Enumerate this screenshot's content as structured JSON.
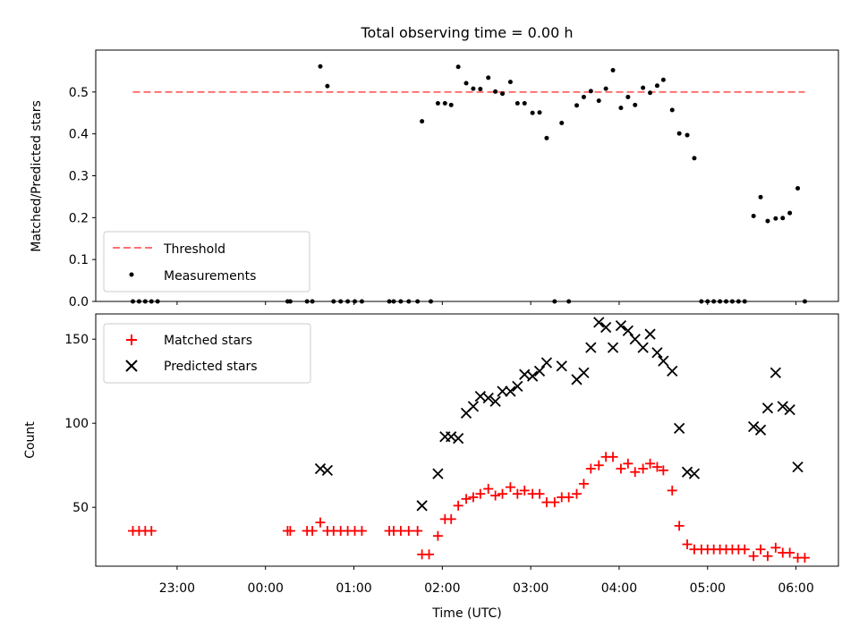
{
  "chart_data": [
    {
      "type": "scatter",
      "title": "Total observing time = 0.00 h",
      "xlabel": "",
      "ylabel": "Matched/Predicted stars",
      "x_unit": "hours relative to 00:00 UTC",
      "xlim": [
        -1.92,
        6.48
      ],
      "ylim": [
        0,
        0.6
      ],
      "yticks": [
        0.0,
        0.1,
        0.2,
        0.3,
        0.4,
        0.5
      ],
      "ytick_labels": [
        "0.0",
        "0.1",
        "0.2",
        "0.3",
        "0.4",
        "0.5"
      ],
      "legend": {
        "placement": "lower-left",
        "entries": [
          "Threshold",
          "Measurements"
        ]
      },
      "threshold": {
        "name": "Threshold",
        "y": 0.5,
        "x_start": -1.5,
        "x_end": 6.1,
        "color": "#ff7070"
      },
      "series": [
        {
          "name": "Measurements",
          "color": "#000000",
          "points": [
            [
              -1.5,
              0
            ],
            [
              -1.43,
              0
            ],
            [
              -1.36,
              0
            ],
            [
              -1.29,
              0
            ],
            [
              -1.22,
              0
            ],
            [
              0.25,
              0
            ],
            [
              0.28,
              0
            ],
            [
              0.47,
              0
            ],
            [
              0.53,
              0
            ],
            [
              0.62,
              0.561
            ],
            [
              0.7,
              0.514
            ],
            [
              0.77,
              0
            ],
            [
              0.85,
              0
            ],
            [
              0.93,
              0
            ],
            [
              1.01,
              0
            ],
            [
              1.09,
              0
            ],
            [
              1.4,
              0
            ],
            [
              1.45,
              0
            ],
            [
              1.53,
              0
            ],
            [
              1.62,
              0
            ],
            [
              1.72,
              0
            ],
            [
              1.77,
              0.43
            ],
            [
              1.87,
              0
            ],
            [
              1.95,
              0.473
            ],
            [
              2.03,
              0.473
            ],
            [
              2.1,
              0.469
            ],
            [
              2.18,
              0.56
            ],
            [
              2.27,
              0.521
            ],
            [
              2.35,
              0.508
            ],
            [
              2.43,
              0.507
            ],
            [
              2.52,
              0.534
            ],
            [
              2.6,
              0.501
            ],
            [
              2.68,
              0.496
            ],
            [
              2.77,
              0.524
            ],
            [
              2.85,
              0.473
            ],
            [
              2.93,
              0.473
            ],
            [
              3.02,
              0.45
            ],
            [
              3.1,
              0.451
            ],
            [
              3.18,
              0.39
            ],
            [
              3.27,
              0
            ],
            [
              3.35,
              0.426
            ],
            [
              3.43,
              0
            ],
            [
              3.52,
              0.468
            ],
            [
              3.6,
              0.488
            ],
            [
              3.68,
              0.502
            ],
            [
              3.77,
              0.479
            ],
            [
              3.85,
              0.508
            ],
            [
              3.93,
              0.552
            ],
            [
              4.02,
              0.462
            ],
            [
              4.1,
              0.488
            ],
            [
              4.18,
              0.469
            ],
            [
              4.27,
              0.51
            ],
            [
              4.35,
              0.498
            ],
            [
              4.43,
              0.515
            ],
            [
              4.5,
              0.529
            ],
            [
              4.6,
              0.457
            ],
            [
              4.68,
              0.401
            ],
            [
              4.77,
              0.397
            ],
            [
              4.85,
              0.342
            ],
            [
              4.93,
              0
            ],
            [
              5.0,
              0
            ],
            [
              5.07,
              0
            ],
            [
              5.14,
              0
            ],
            [
              5.21,
              0
            ],
            [
              5.28,
              0
            ],
            [
              5.35,
              0
            ],
            [
              5.42,
              0
            ],
            [
              5.52,
              0.204
            ],
            [
              5.6,
              0.249
            ],
            [
              5.68,
              0.192
            ],
            [
              5.77,
              0.198
            ],
            [
              5.85,
              0.199
            ],
            [
              5.93,
              0.211
            ],
            [
              6.02,
              0.27
            ],
            [
              6.1,
              0
            ]
          ]
        }
      ]
    },
    {
      "type": "scatter",
      "title": "",
      "xlabel": "Time (UTC)",
      "ylabel": "Count",
      "x_unit": "hours relative to 00:00 UTC",
      "xlim": [
        -1.92,
        6.48
      ],
      "ylim": [
        15,
        165
      ],
      "xticks": [
        -1,
        0,
        1,
        2,
        3,
        4,
        5,
        6
      ],
      "xtick_labels": [
        "23:00",
        "00:00",
        "01:00",
        "02:00",
        "03:00",
        "04:00",
        "05:00",
        "06:00"
      ],
      "yticks": [
        50,
        100,
        150
      ],
      "ytick_labels": [
        "50",
        "100",
        "150"
      ],
      "legend": {
        "placement": "top-left",
        "entries": [
          "Matched stars",
          "Predicted stars"
        ]
      },
      "series": [
        {
          "name": "Matched stars",
          "marker": "plus",
          "color": "#ff0000",
          "points": [
            [
              -1.5,
              36
            ],
            [
              -1.43,
              36
            ],
            [
              -1.36,
              36
            ],
            [
              -1.29,
              36
            ],
            [
              0.25,
              36
            ],
            [
              0.28,
              36
            ],
            [
              0.47,
              36
            ],
            [
              0.53,
              36
            ],
            [
              0.62,
              41
            ],
            [
              0.7,
              36
            ],
            [
              0.77,
              36
            ],
            [
              0.85,
              36
            ],
            [
              0.93,
              36
            ],
            [
              1.01,
              36
            ],
            [
              1.09,
              36
            ],
            [
              1.4,
              36
            ],
            [
              1.45,
              36
            ],
            [
              1.53,
              36
            ],
            [
              1.62,
              36
            ],
            [
              1.72,
              36
            ],
            [
              1.77,
              22
            ],
            [
              1.85,
              22
            ],
            [
              1.95,
              33
            ],
            [
              2.03,
              43
            ],
            [
              2.1,
              43
            ],
            [
              2.18,
              51
            ],
            [
              2.27,
              55
            ],
            [
              2.35,
              56
            ],
            [
              2.43,
              58
            ],
            [
              2.52,
              61
            ],
            [
              2.6,
              57
            ],
            [
              2.68,
              58
            ],
            [
              2.77,
              62
            ],
            [
              2.85,
              58
            ],
            [
              2.93,
              60
            ],
            [
              3.02,
              58
            ],
            [
              3.1,
              58
            ],
            [
              3.18,
              53
            ],
            [
              3.27,
              53
            ],
            [
              3.35,
              56
            ],
            [
              3.43,
              56
            ],
            [
              3.52,
              58
            ],
            [
              3.6,
              64
            ],
            [
              3.68,
              73
            ],
            [
              3.77,
              75
            ],
            [
              3.85,
              80
            ],
            [
              3.93,
              80
            ],
            [
              4.02,
              73
            ],
            [
              4.1,
              76
            ],
            [
              4.18,
              71
            ],
            [
              4.27,
              73
            ],
            [
              4.35,
              76
            ],
            [
              4.43,
              74
            ],
            [
              4.5,
              72
            ],
            [
              4.6,
              60
            ],
            [
              4.68,
              39
            ],
            [
              4.77,
              28
            ],
            [
              4.85,
              25
            ],
            [
              4.93,
              25
            ],
            [
              5.0,
              25
            ],
            [
              5.07,
              25
            ],
            [
              5.14,
              25
            ],
            [
              5.21,
              25
            ],
            [
              5.28,
              25
            ],
            [
              5.35,
              25
            ],
            [
              5.42,
              25
            ],
            [
              5.52,
              21
            ],
            [
              5.6,
              25
            ],
            [
              5.68,
              21
            ],
            [
              5.77,
              26
            ],
            [
              5.85,
              23
            ],
            [
              5.93,
              23
            ],
            [
              6.02,
              20
            ],
            [
              6.1,
              20
            ]
          ]
        },
        {
          "name": "Predicted stars",
          "marker": "x",
          "color": "#000000",
          "points": [
            [
              0.62,
              73
            ],
            [
              0.7,
              72
            ],
            [
              1.77,
              51
            ],
            [
              1.95,
              70
            ],
            [
              2.03,
              92
            ],
            [
              2.1,
              92
            ],
            [
              2.18,
              91
            ],
            [
              2.27,
              106
            ],
            [
              2.35,
              110
            ],
            [
              2.43,
              116
            ],
            [
              2.52,
              115
            ],
            [
              2.6,
              113
            ],
            [
              2.68,
              119
            ],
            [
              2.77,
              119
            ],
            [
              2.85,
              122
            ],
            [
              2.93,
              129
            ],
            [
              3.02,
              128
            ],
            [
              3.1,
              131
            ],
            [
              3.18,
              136
            ],
            [
              3.35,
              134
            ],
            [
              3.52,
              126
            ],
            [
              3.6,
              130
            ],
            [
              3.68,
              145
            ],
            [
              3.77,
              160
            ],
            [
              3.85,
              157
            ],
            [
              3.93,
              145
            ],
            [
              4.02,
              158
            ],
            [
              4.1,
              155
            ],
            [
              4.18,
              150
            ],
            [
              4.27,
              145
            ],
            [
              4.35,
              153
            ],
            [
              4.43,
              142
            ],
            [
              4.5,
              137
            ],
            [
              4.6,
              131
            ],
            [
              4.68,
              97
            ],
            [
              4.77,
              71
            ],
            [
              4.85,
              70
            ],
            [
              5.52,
              98
            ],
            [
              5.6,
              96
            ],
            [
              5.68,
              109
            ],
            [
              5.77,
              130
            ],
            [
              5.85,
              110
            ],
            [
              5.93,
              108
            ],
            [
              6.02,
              74
            ]
          ]
        }
      ]
    }
  ]
}
